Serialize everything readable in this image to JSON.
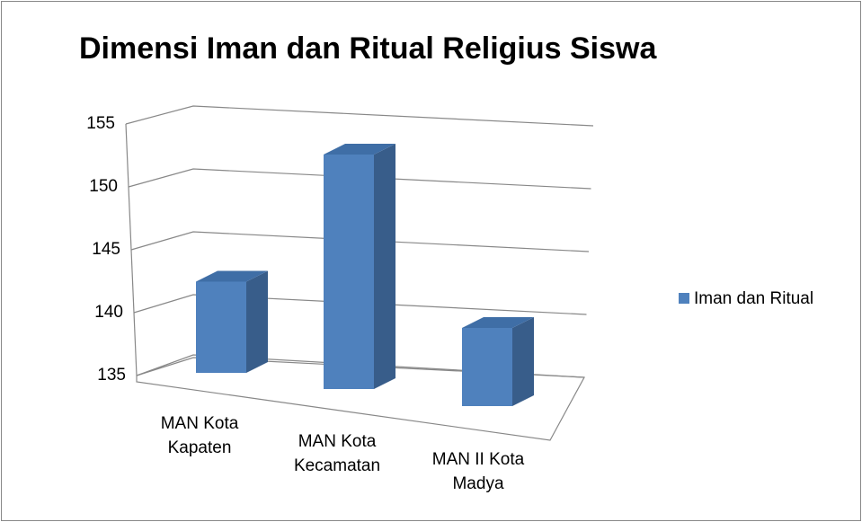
{
  "chart_data": {
    "type": "bar3d",
    "title": "Dimensi Iman dan Ritual Religius Siswa",
    "categories": [
      "MAN Kota Kapaten",
      "MAN Kota Kecamatan",
      "MAN II Kota Madya"
    ],
    "series": [
      {
        "name": "Iman dan Ritual",
        "color": "#4f81bd",
        "values": [
          142,
          153,
          141
        ]
      }
    ],
    "ylim": [
      135,
      155
    ],
    "yticks": [
      135,
      140,
      145,
      150,
      155
    ],
    "grid": true,
    "legend": "right"
  }
}
